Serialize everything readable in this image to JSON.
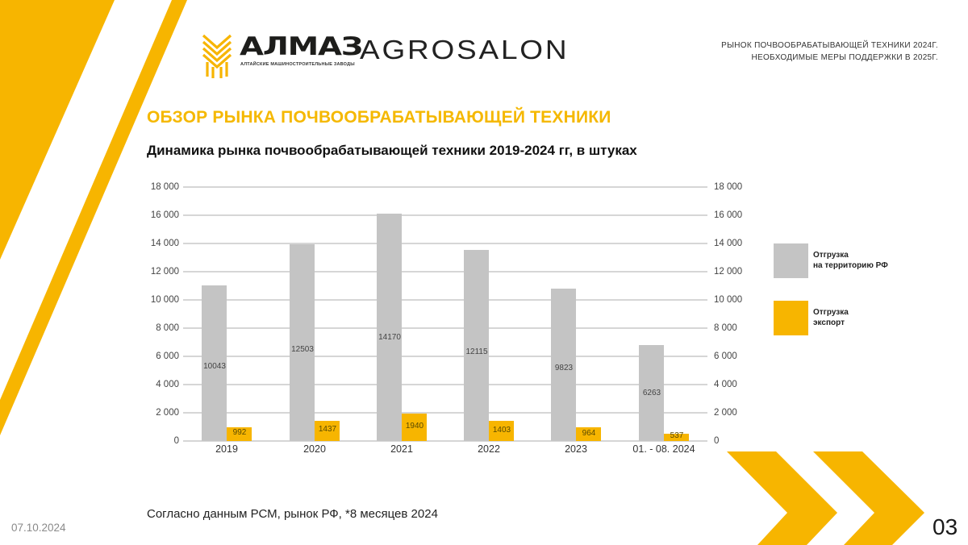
{
  "header": {
    "logo_primary": "АЛМАЗ",
    "logo_primary_subtitle": "АЛТАЙСКИЕ МАШИНОСТРОИТЕЛЬНЫЕ ЗАВОДЫ",
    "logo_secondary": "AGROSALON",
    "right_line1": "РЫНОК ПОЧВООБРАБАТЫВАЮЩЕЙ ТЕХНИКИ 2024Г.",
    "right_line2": "НЕОБХОДИМЫЕ МЕРЫ ПОДДЕРЖКИ В 2025Г."
  },
  "section_title": "ОБЗОР РЫНКА ПОЧВООБРАБАТЫВАЮЩЕЙ ТЕХНИКИ",
  "chart_title": "Динамика рынка почвообрабатывающей техники 2019-2024 гг, в штуках",
  "legend": {
    "rf_line1": "Отгрузка",
    "rf_line2": "на территорию РФ",
    "export_line1": "Отгрузка",
    "export_line2": "экспорт"
  },
  "colors": {
    "accent": "#f7b500",
    "rf_series": "#c4c4c4",
    "export_series": "#f7b500"
  },
  "footer": {
    "footnote": "Согласно данным РСМ, рынок РФ, *8 месяцев 2024",
    "date": "07.10.2024",
    "page_number": "03"
  },
  "y_ticks": [
    "18 000",
    "16 000",
    "14 000",
    "12 000",
    "10 000",
    "8 000",
    "6 000",
    "4 000",
    "2 000",
    "0"
  ],
  "chart_data": {
    "type": "bar",
    "title": "Динамика рынка почвообрабатывающей техники 2019-2024 гг, в штуках",
    "categories": [
      "2019",
      "2020",
      "2021",
      "2022",
      "2023",
      "01. - 08. 2024"
    ],
    "series": [
      {
        "name": "Отгрузка на территорию РФ",
        "values": [
          10043,
          12503,
          14170,
          12115,
          9823,
          6263
        ],
        "color": "#c4c4c4"
      },
      {
        "name": "Отгрузка экспорт",
        "values": [
          992,
          1437,
          1940,
          1403,
          964,
          537
        ],
        "color": "#f7b500"
      }
    ],
    "note": "Grey bar heights drawn to total (RF + export)",
    "xlabel": "",
    "ylabel": "",
    "ylim": [
      0,
      18000
    ],
    "y_tick_step": 2000,
    "dual_y_axis_labels": true,
    "grid": true,
    "legend_position": "right"
  }
}
